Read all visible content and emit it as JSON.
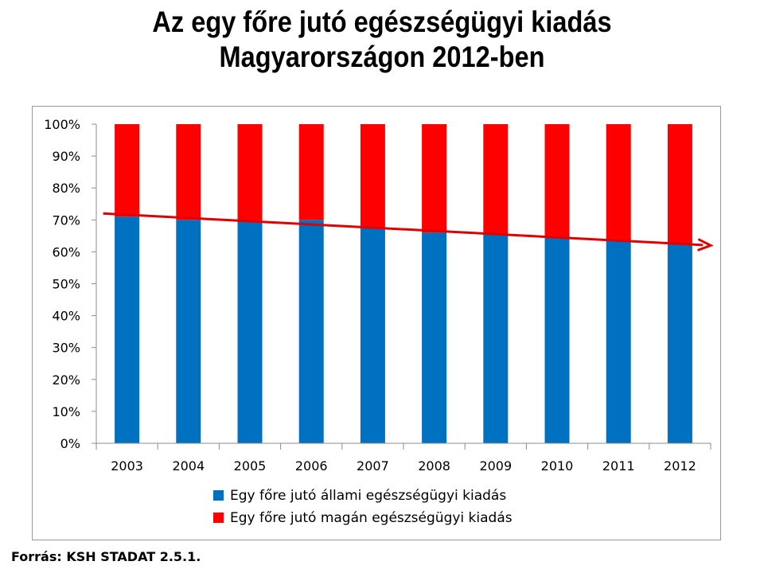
{
  "title_line1": "Az egy főre jutó egészségügyi kiadás",
  "title_line2": "Magyarországon 2012-ben",
  "source": "Forrás: KSH STADAT 2.5.1.",
  "chart_data": {
    "type": "bar",
    "stacked": true,
    "categories": [
      "2003",
      "2004",
      "2005",
      "2006",
      "2007",
      "2008",
      "2009",
      "2010",
      "2011",
      "2012"
    ],
    "series": [
      {
        "name": "Egy főre jutó állami egészségügyi kiadás",
        "color": "#0070C0",
        "values": [
          71,
          70,
          69.5,
          70,
          67.5,
          66,
          65.5,
          64.5,
          63.5,
          62.5
        ]
      },
      {
        "name": "Egy főre jutó magán egészségügyi kiadás",
        "color": "#FF0000",
        "values": [
          29,
          30,
          30.5,
          30,
          32.5,
          34,
          34.5,
          35.5,
          36.5,
          37.5
        ]
      }
    ],
    "ylim": [
      0,
      100
    ],
    "y_ticks": [
      "0%",
      "10%",
      "20%",
      "30%",
      "40%",
      "50%",
      "60%",
      "70%",
      "80%",
      "90%",
      "100%"
    ],
    "legend_position": "bottom",
    "trend_arrow": {
      "from": {
        "category": "2003",
        "value": 72
      },
      "to_value": 62,
      "color": "#E00000"
    },
    "grid": false
  }
}
